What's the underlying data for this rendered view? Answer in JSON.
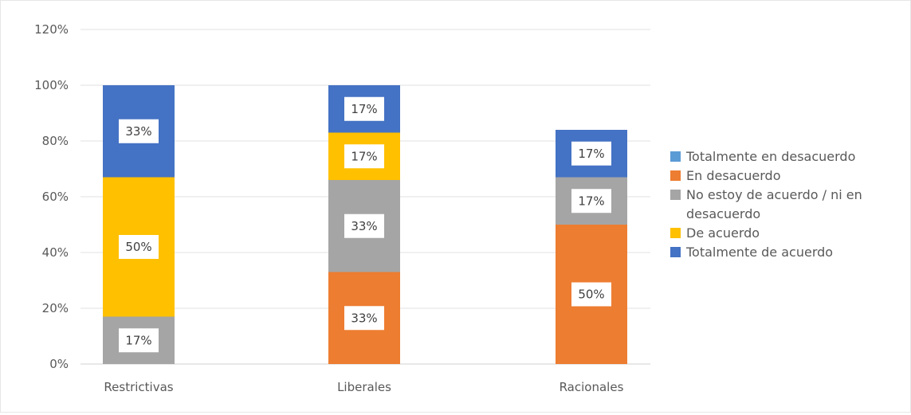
{
  "chart_data": {
    "type": "bar",
    "stacked": true,
    "categories": [
      "Restrictivas",
      "Liberales",
      "Racionales"
    ],
    "ylim": [
      0,
      1.2
    ],
    "yticks": [
      0,
      0.2,
      0.4,
      0.6,
      0.8,
      1.0,
      1.2
    ],
    "ytick_labels": [
      "0%",
      "20%",
      "40%",
      "60%",
      "80%",
      "100%",
      "120%"
    ],
    "grid": true,
    "legend_position": "right",
    "title": "",
    "xlabel": "",
    "ylabel": "",
    "series": [
      {
        "name": "Totalmente en desacuerdo",
        "legend_lines": [
          "Totalmente en desacuerdo"
        ],
        "color": "#5B9BD5",
        "values": [
          0,
          0,
          0
        ],
        "labels": [
          "",
          "",
          ""
        ]
      },
      {
        "name": "En desacuerdo",
        "legend_lines": [
          "En desacuerdo"
        ],
        "color": "#ED7D31",
        "values": [
          0,
          0.33,
          0.5
        ],
        "labels": [
          "",
          "33%",
          "50%"
        ]
      },
      {
        "name": "No estoy de acuerdo / ni en desacuerdo",
        "legend_lines": [
          "No estoy de acuerdo / ni en",
          "desacuerdo"
        ],
        "color": "#A5A5A5",
        "values": [
          0.17,
          0.33,
          0.17
        ],
        "labels": [
          "17%",
          "33%",
          "17%"
        ]
      },
      {
        "name": "De acuerdo",
        "legend_lines": [
          "De acuerdo"
        ],
        "color": "#FFC000",
        "values": [
          0.5,
          0.17,
          0
        ],
        "labels": [
          "50%",
          "17%",
          ""
        ]
      },
      {
        "name": "Totalmente de acuerdo",
        "legend_lines": [
          "Totalmente de acuerdo"
        ],
        "color": "#4472C4",
        "values": [
          0.33,
          0.17,
          0.17
        ],
        "labels": [
          "33%",
          "17%",
          "17%"
        ]
      }
    ]
  }
}
